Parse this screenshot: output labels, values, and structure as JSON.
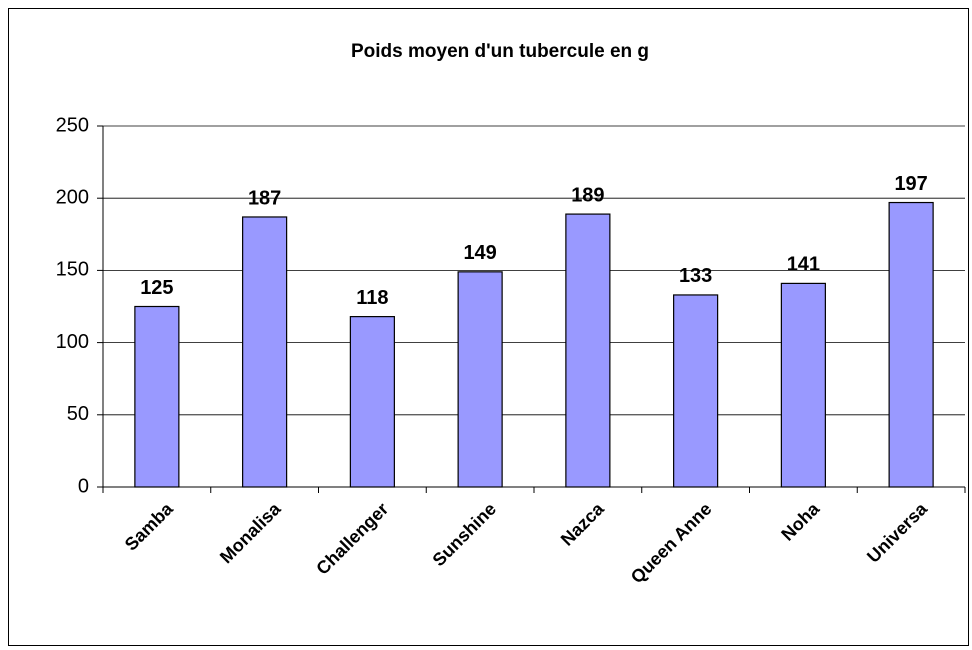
{
  "chart_data": {
    "type": "bar",
    "title": "Poids moyen d'un tubercule en g",
    "categories": [
      "Samba",
      "Monalisa",
      "Challenger",
      "Sunshine",
      "Nazca",
      "Queen Anne",
      "Noha",
      "Universa"
    ],
    "values": [
      125,
      187,
      118,
      149,
      189,
      133,
      141,
      197
    ],
    "color": "#9999ff",
    "ylim": [
      0,
      250
    ],
    "yticks": [
      0,
      50,
      100,
      150,
      200,
      250
    ],
    "grid": true
  }
}
